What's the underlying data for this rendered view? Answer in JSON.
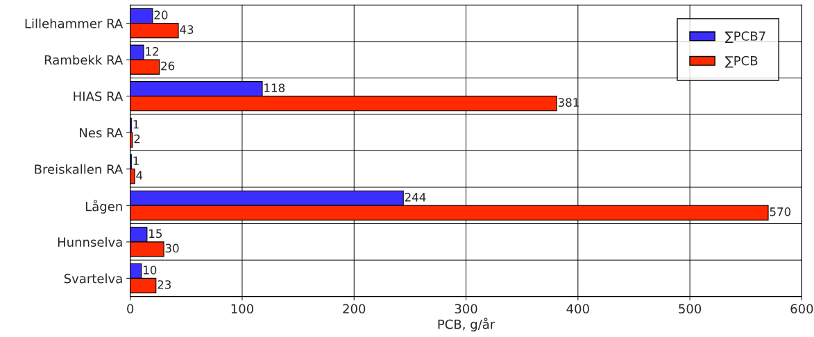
{
  "chart_data": {
    "type": "bar",
    "orientation": "horizontal",
    "xlabel": "PCB, g/år",
    "categories": [
      "Lillehammer RA",
      "Rambekk RA",
      "HIAS RA",
      "Nes RA",
      "Breiskallen RA",
      "Lågen",
      "Hunnselva",
      "Svartelva"
    ],
    "series": [
      {
        "name": "∑PCB7",
        "color": "#3b2fff",
        "values": [
          20,
          12,
          118,
          1,
          1,
          244,
          15,
          10
        ]
      },
      {
        "name": "∑PCB",
        "color": "#ff2a00",
        "values": [
          43,
          26,
          381,
          2,
          4,
          570,
          30,
          23
        ]
      }
    ],
    "xlim": [
      0,
      600
    ],
    "xticks": [
      0,
      100,
      200,
      300,
      400,
      500,
      600
    ],
    "grid": true,
    "legend": "top right",
    "data_labels": true
  }
}
